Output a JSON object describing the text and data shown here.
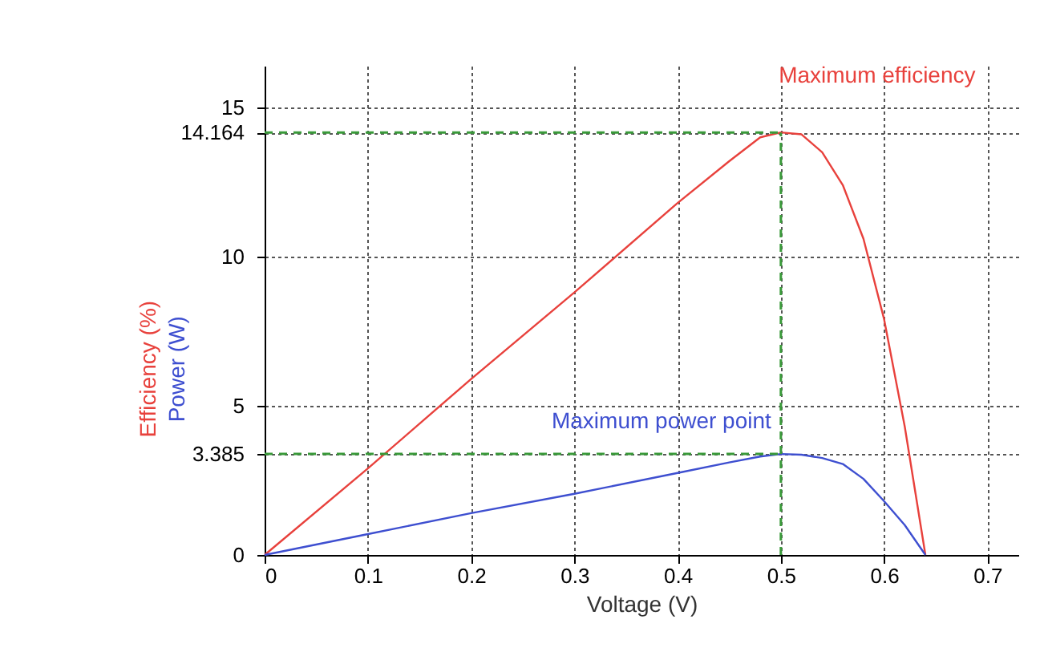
{
  "chart_data": {
    "type": "line",
    "xlabel": "Voltage (V)",
    "x": [
      0,
      0.1,
      0.2,
      0.3,
      0.4,
      0.45,
      0.48,
      0.5,
      0.52,
      0.54,
      0.56,
      0.58,
      0.6,
      0.62,
      0.64
    ],
    "series": [
      {
        "name": "Efficiency (%)",
        "color": "#e8413c",
        "values": [
          0,
          2.9,
          5.9,
          8.8,
          11.8,
          13.2,
          14.0,
          14.164,
          14.1,
          13.5,
          12.4,
          10.6,
          7.9,
          4.3,
          0
        ]
      },
      {
        "name": "Power (W)",
        "color": "#3e4fd0",
        "values": [
          0,
          0.7,
          1.4,
          2.05,
          2.75,
          3.1,
          3.3,
          3.385,
          3.36,
          3.25,
          3.05,
          2.55,
          1.8,
          1.0,
          0
        ]
      }
    ],
    "xlim": [
      0,
      0.73
    ],
    "xticks": [
      0,
      0.1,
      0.2,
      0.3,
      0.4,
      0.5,
      0.6,
      0.7
    ],
    "ylim": [
      0,
      16.4
    ],
    "yticks": [
      0,
      3.385,
      5,
      10,
      14.164,
      15
    ],
    "grid": true,
    "marker": "none",
    "line_style": "solid",
    "legend": false,
    "ref_lines": [
      {
        "axis": "x",
        "value": 0.5,
        "color": "#3a9a3a",
        "line_style": "dashed"
      },
      {
        "axis": "y",
        "value": 14.164,
        "color": "#3a9a3a",
        "line_style": "dashed"
      },
      {
        "axis": "y",
        "value": 3.385,
        "color": "#3a9a3a",
        "line_style": "dashed"
      }
    ],
    "annotations": [
      {
        "text": "Maximum efficiency",
        "x": 0.5,
        "y": 14.164
      },
      {
        "text": "Maximum power point",
        "x": 0.5,
        "y": 3.385
      }
    ]
  }
}
